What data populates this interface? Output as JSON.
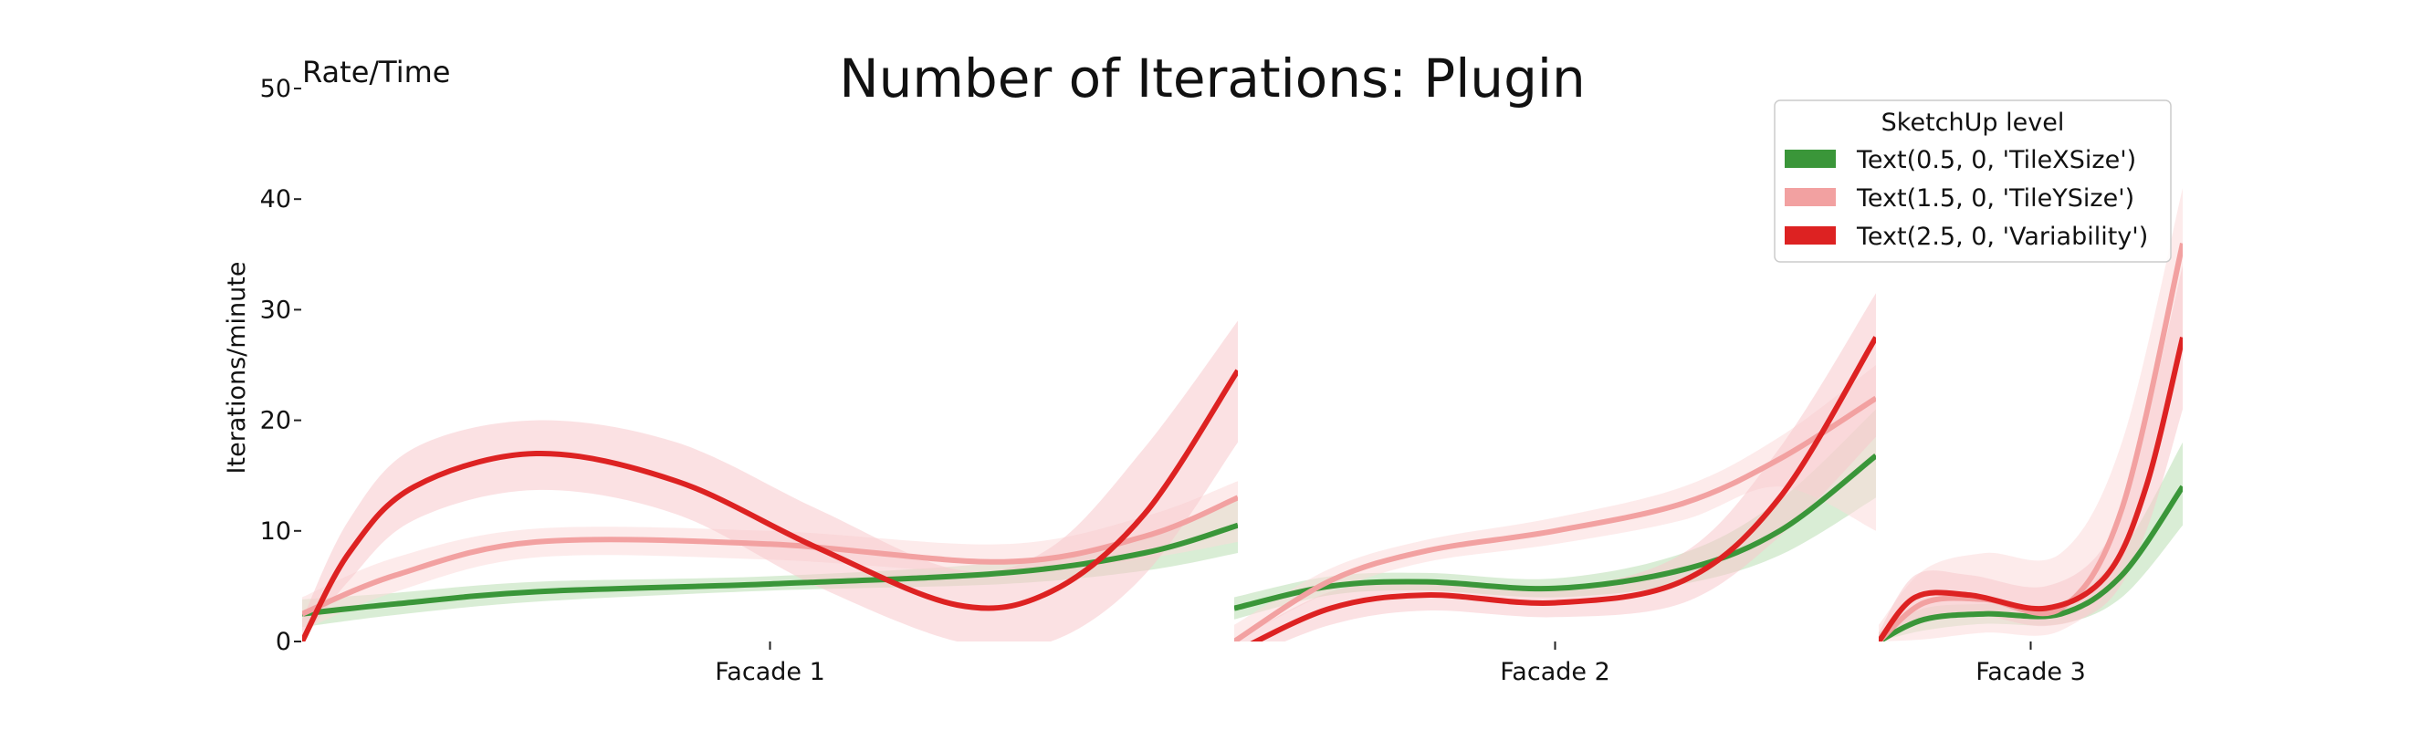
{
  "chart_data": {
    "type": "line",
    "title": "Number of Iterations: Plugin",
    "corner_label": "Rate/Time",
    "ylabel": "Iterations/minute",
    "xlabel": "",
    "ylim": [
      0,
      50
    ],
    "yticks": [
      0,
      10,
      20,
      30,
      40,
      50
    ],
    "grid": false,
    "legend": {
      "title": "SketchUp level",
      "placement": "top-right",
      "entries": [
        "Text(0.5, 0, 'TileXSize')",
        "Text(1.5, 0, 'TileYSize')",
        "Text(2.5, 0, 'Variability')"
      ]
    },
    "categories": [
      "Facade 1",
      "Facade 2",
      "Facade 3"
    ],
    "series": [
      {
        "name": "Text(0.5, 0, 'TileXSize')",
        "color": "#3a9639",
        "band_color": "#b9dfb3",
        "panels": [
          {
            "x": [
              0,
              0.1,
              0.25,
              0.5,
              0.75,
              0.9,
              1.0
            ],
            "y": [
              2.5,
              3.4,
              4.5,
              5.2,
              6.2,
              8.0,
              10.5
            ],
            "lo": [
              1.3,
              2.4,
              3.6,
              4.6,
              5.2,
              6.4,
              8.0
            ],
            "hi": [
              3.8,
              4.4,
              5.4,
              5.9,
              7.2,
              9.6,
              13.0
            ]
          },
          {
            "x": [
              0,
              0.15,
              0.3,
              0.5,
              0.7,
              0.85,
              1.0
            ],
            "y": [
              3.0,
              5.0,
              5.4,
              4.8,
              6.5,
              10.0,
              16.8
            ],
            "lo": [
              2.0,
              4.2,
              4.6,
              4.0,
              5.2,
              7.8,
              13.0
            ],
            "hi": [
              4.0,
              5.9,
              6.2,
              5.7,
              8.0,
              12.8,
              21.0
            ]
          },
          {
            "x": [
              0,
              0.15,
              0.35,
              0.6,
              0.8,
              1.0
            ],
            "y": [
              0.0,
              2.0,
              2.5,
              2.5,
              6.0,
              14.0
            ],
            "lo": [
              0.0,
              1.0,
              1.6,
              1.6,
              4.0,
              10.5
            ],
            "hi": [
              0.8,
              3.0,
              3.4,
              3.6,
              8.2,
              18.0
            ]
          }
        ]
      },
      {
        "name": "Text(1.5, 0, 'TileYSize')",
        "color": "#f2a1a1",
        "band_color": "#fbdbdb",
        "panels": [
          {
            "x": [
              0,
              0.1,
              0.25,
              0.5,
              0.75,
              0.9,
              1.0
            ],
            "y": [
              2.5,
              6.0,
              9.0,
              8.8,
              7.2,
              9.5,
              13.0
            ],
            "lo": [
              1.0,
              4.5,
              7.6,
              7.4,
              6.2,
              7.5,
              9.0
            ],
            "hi": [
              4.0,
              7.6,
              10.2,
              10.0,
              8.8,
              11.3,
              14.5
            ]
          },
          {
            "x": [
              0,
              0.15,
              0.3,
              0.5,
              0.7,
              0.85,
              1.0
            ],
            "y": [
              0.0,
              5.5,
              8.2,
              10.0,
              12.5,
              16.5,
              22.0
            ],
            "lo": [
              0.0,
              4.5,
              7.2,
              8.8,
              11.0,
              14.0,
              10.0
            ],
            "hi": [
              1.5,
              6.6,
              9.2,
              11.2,
              14.0,
              18.5,
              25.0
            ]
          },
          {
            "x": [
              0,
              0.15,
              0.35,
              0.6,
              0.8,
              1.0
            ],
            "y": [
              0.0,
              3.5,
              3.8,
              3.0,
              12.0,
              36.0
            ],
            "lo": [
              0.0,
              0.2,
              0.8,
              1.0,
              7.0,
              26.0
            ],
            "hi": [
              1.5,
              6.5,
              8.0,
              8.0,
              18.0,
              41.0
            ]
          }
        ]
      },
      {
        "name": "Text(2.5, 0, 'Variability')",
        "color": "#dd2222",
        "band_color": "#f7c9cc",
        "panels": [
          {
            "x": [
              0,
              0.05,
              0.12,
              0.25,
              0.4,
              0.55,
              0.7,
              0.8,
              0.9,
              1.0
            ],
            "y": [
              0.0,
              8.0,
              14.0,
              17.0,
              14.5,
              8.5,
              3.3,
              4.5,
              11.5,
              24.5
            ],
            "lo": [
              0.0,
              5.5,
              11.0,
              13.7,
              11.5,
              5.0,
              0.0,
              0.0,
              6.0,
              18.0
            ],
            "hi": [
              2.0,
              11.0,
              17.5,
              20.0,
              18.0,
              12.0,
              6.5,
              8.5,
              17.5,
              29.0
            ]
          },
          {
            "x": [
              0,
              0.15,
              0.3,
              0.5,
              0.7,
              0.85,
              1.0
            ],
            "y": [
              -1.0,
              3.0,
              4.2,
              3.5,
              5.5,
              13.0,
              27.5
            ],
            "lo": [
              -2.0,
              1.5,
              2.8,
              2.2,
              3.5,
              9.5,
              18.5
            ],
            "hi": [
              0.0,
              4.5,
              5.5,
              4.8,
              8.0,
              17.5,
              31.5
            ]
          },
          {
            "x": [
              0,
              0.12,
              0.3,
              0.55,
              0.75,
              0.88,
              1.0
            ],
            "y": [
              0.0,
              4.0,
              4.2,
              3.0,
              6.0,
              14.0,
              27.5
            ],
            "lo": [
              0.0,
              2.0,
              2.6,
              1.4,
              3.5,
              10.0,
              21.0
            ],
            "hi": [
              0.8,
              6.0,
              6.0,
              5.0,
              9.0,
              20.0,
              34.0
            ]
          }
        ]
      }
    ]
  }
}
